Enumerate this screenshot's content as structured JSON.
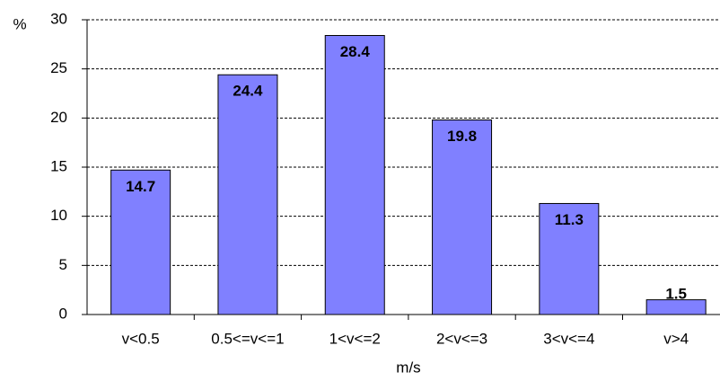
{
  "chart_data": {
    "type": "bar",
    "y_label": "%",
    "x_label": "m/s",
    "categories": [
      "v<0.5",
      "0.5<=v<=1",
      "1<v<=2",
      "2<v<=3",
      "3<v<=4",
      "v>4"
    ],
    "values": [
      14.7,
      24.4,
      28.4,
      19.8,
      11.3,
      1.5
    ],
    "color": "#8080ff",
    "ylim": [
      0,
      30
    ],
    "yticks": [
      0,
      5,
      10,
      15,
      20,
      25,
      30
    ],
    "grid": true
  }
}
